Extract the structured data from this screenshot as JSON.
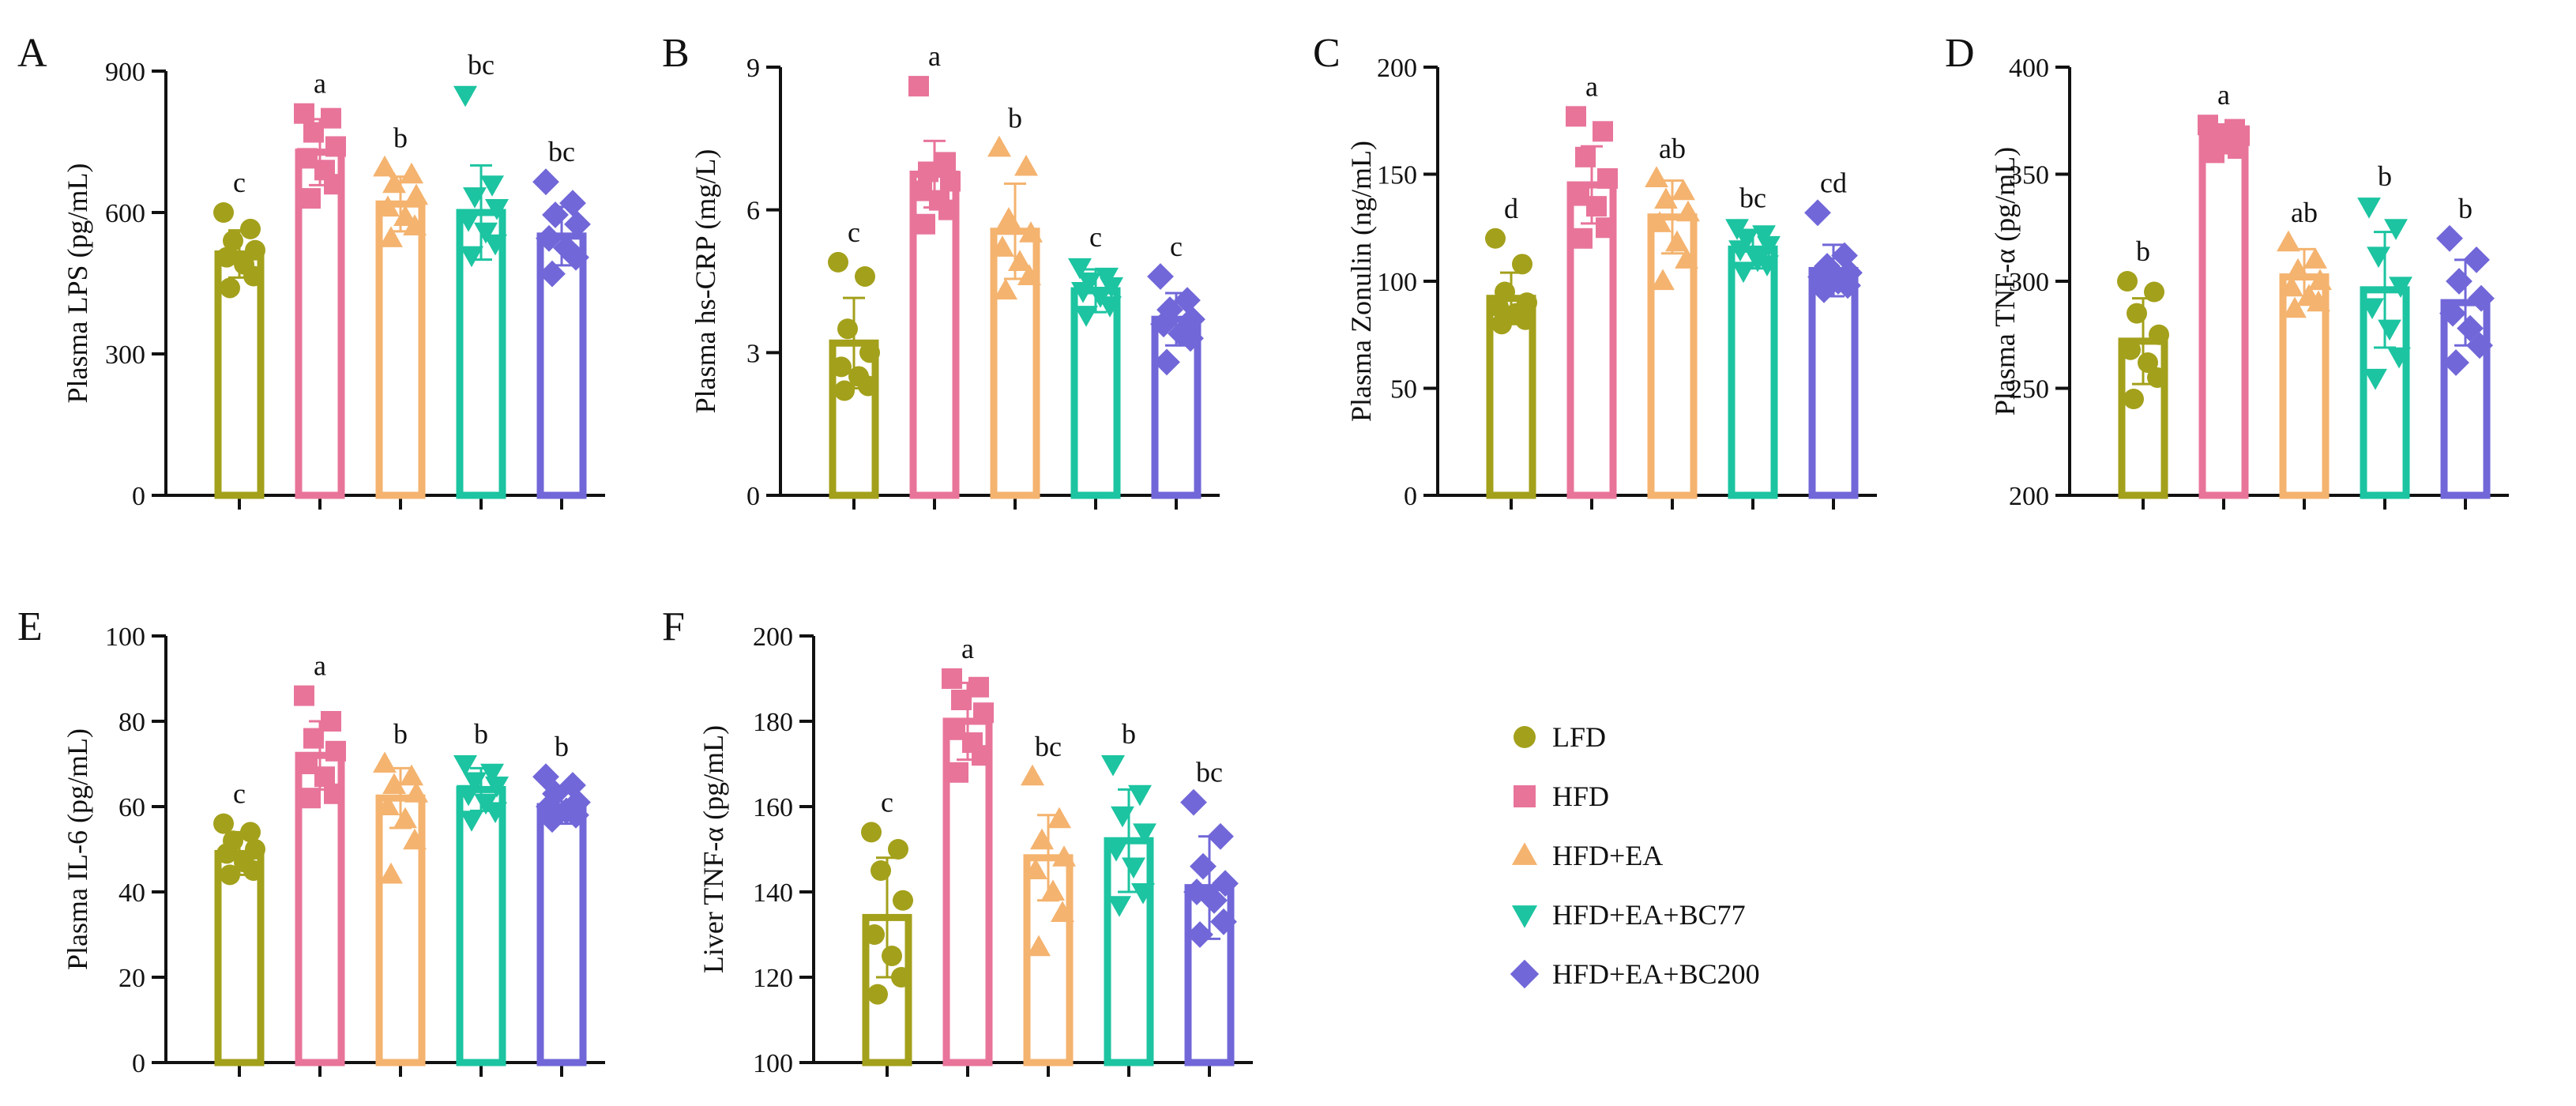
{
  "chart_data": [
    {
      "panel_label": "A",
      "type": "bar",
      "categories": [
        "LFD",
        "HFD",
        "HFD+EA",
        "HFD+EA+BC77",
        "HFD+EA+BC200"
      ],
      "values": [
        512,
        728,
        618,
        600,
        550
      ],
      "errors": [
        50,
        70,
        58,
        100,
        62
      ],
      "letters": [
        "c",
        "a",
        "b",
        "bc",
        "bc"
      ],
      "points": [
        [
          600,
          565,
          540,
          520,
          505,
          490,
          465,
          440
        ],
        [
          810,
          800,
          770,
          740,
          715,
          690,
          660,
          630
        ],
        [
          695,
          680,
          660,
          635,
          610,
          590,
          570,
          545
        ],
        [
          850,
          660,
          635,
          610,
          585,
          560,
          535,
          510
        ],
        [
          665,
          620,
          595,
          575,
          545,
          525,
          505,
          470
        ]
      ],
      "ylabel": "Plasma LPS (pg/mL)",
      "ylim": [
        0,
        900
      ],
      "yticks": [
        0,
        300,
        600,
        900
      ]
    },
    {
      "panel_label": "B",
      "type": "bar",
      "categories": [
        "LFD",
        "HFD",
        "HFD+EA",
        "HFD+EA+BC77",
        "HFD+EA+BC200"
      ],
      "values": [
        3.2,
        6.75,
        5.55,
        4.3,
        3.7
      ],
      "errors": [
        0.95,
        0.7,
        1.0,
        0.45,
        0.55
      ],
      "letters": [
        "c",
        "a",
        "b",
        "c",
        "c"
      ],
      "points": [
        [
          4.9,
          4.6,
          3.5,
          3.0,
          2.7,
          2.5,
          2.3,
          2.2
        ],
        [
          8.6,
          7.0,
          6.8,
          6.6,
          6.4,
          6.2,
          6.0,
          5.7
        ],
        [
          7.3,
          6.9,
          5.8,
          5.5,
          5.2,
          4.9,
          4.6,
          4.3
        ],
        [
          4.8,
          4.6,
          4.5,
          4.4,
          4.3,
          4.2,
          4.0,
          3.8
        ],
        [
          4.6,
          4.1,
          3.9,
          3.7,
          3.6,
          3.4,
          3.3,
          2.8
        ]
      ],
      "ylabel": "Plasma hs-CRP (mg/L)",
      "ylim": [
        0,
        9
      ],
      "yticks": [
        0,
        3,
        6,
        9
      ]
    },
    {
      "panel_label": "C",
      "type": "bar",
      "categories": [
        "LFD",
        "HFD",
        "HFD+EA",
        "HFD+EA+BC77",
        "HFD+EA+BC200"
      ],
      "values": [
        92,
        145,
        130,
        115,
        105
      ],
      "errors": [
        12,
        18,
        17,
        9,
        12
      ],
      "letters": [
        "d",
        "a",
        "ab",
        "bc",
        "cd"
      ],
      "points": [
        [
          120,
          108,
          95,
          90,
          88,
          85,
          82,
          80
        ],
        [
          177,
          170,
          158,
          148,
          140,
          135,
          125,
          120
        ],
        [
          148,
          142,
          138,
          132,
          127,
          118,
          110,
          100
        ],
        [
          125,
          122,
          120,
          117,
          115,
          110,
          108,
          105
        ],
        [
          132,
          112,
          107,
          104,
          102,
          100,
          98,
          96
        ]
      ],
      "ylabel": "Plasma Zonulin (ng/mL)",
      "ylim": [
        0,
        200
      ],
      "yticks": [
        0,
        50,
        100,
        150,
        200
      ]
    },
    {
      "panel_label": "D",
      "type": "bar",
      "categories": [
        "LFD",
        "HFD",
        "HFD+EA",
        "HFD+EA+BC77",
        "HFD+EA+BC200"
      ],
      "values": [
        272,
        368,
        302,
        296,
        290
      ],
      "errors": [
        20,
        5,
        13,
        27,
        20
      ],
      "letters": [
        "b",
        "a",
        "ab",
        "b",
        "b"
      ],
      "points": [
        [
          300,
          295,
          285,
          275,
          268,
          262,
          255,
          245
        ],
        [
          373,
          371,
          369,
          368,
          366,
          364,
          362,
          360
        ],
        [
          318,
          310,
          305,
          300,
          297,
          293,
          290,
          287
        ],
        [
          335,
          325,
          312,
          298,
          288,
          278,
          265,
          255
        ],
        [
          320,
          310,
          300,
          292,
          285,
          278,
          270,
          262
        ]
      ],
      "ylabel": "Plasma TNF-α (pg/mL)",
      "ylim": [
        200,
        400
      ],
      "yticks": [
        200,
        250,
        300,
        350,
        400
      ]
    },
    {
      "panel_label": "E",
      "type": "bar",
      "categories": [
        "LFD",
        "HFD",
        "HFD+EA",
        "HFD+EA+BC77",
        "HFD+EA+BC200"
      ],
      "values": [
        49,
        72,
        62,
        64,
        60
      ],
      "errors": [
        5,
        8,
        7,
        5,
        4
      ],
      "letters": [
        "c",
        "a",
        "b",
        "b",
        "b"
      ],
      "points": [
        [
          56,
          54,
          52,
          50,
          49,
          47,
          45,
          44
        ],
        [
          86,
          80,
          76,
          73,
          70,
          67,
          63,
          62
        ],
        [
          70,
          67,
          65,
          63,
          60,
          57,
          52,
          44
        ],
        [
          70,
          68,
          66,
          65,
          63,
          61,
          59,
          57
        ],
        [
          67,
          65,
          63,
          61,
          60,
          59,
          58,
          57
        ]
      ],
      "ylabel": "Plasma IL-6 (pg/mL)",
      "ylim": [
        0,
        100
      ],
      "yticks": [
        0,
        20,
        40,
        60,
        80,
        100
      ]
    },
    {
      "panel_label": "F",
      "type": "bar",
      "categories": [
        "LFD",
        "HFD",
        "HFD+EA",
        "HFD+EA+BC77",
        "HFD+EA+BC200"
      ],
      "values": [
        134,
        180,
        148,
        152,
        141
      ],
      "errors": [
        14,
        9,
        10,
        12,
        12
      ],
      "letters": [
        "c",
        "a",
        "bc",
        "b",
        "bc"
      ],
      "points": [
        [
          154,
          150,
          145,
          138,
          130,
          125,
          120,
          116
        ],
        [
          190,
          188,
          185,
          182,
          178,
          175,
          172,
          168
        ],
        [
          167,
          157,
          152,
          148,
          145,
          140,
          135,
          127
        ],
        [
          170,
          163,
          158,
          154,
          150,
          146,
          140,
          137
        ],
        [
          161,
          153,
          146,
          142,
          140,
          138,
          133,
          130
        ]
      ],
      "ylabel": "Liver TNF-α (pg/mL)",
      "ylim": [
        100,
        200
      ],
      "yticks": [
        100,
        120,
        140,
        160,
        180,
        200
      ]
    }
  ],
  "legend": [
    {
      "label": "LFD",
      "marker": "circle",
      "color": "#A3A01B"
    },
    {
      "label": "HFD",
      "marker": "square",
      "color": "#E8749A"
    },
    {
      "label": "HFD+EA",
      "marker": "triangle-up",
      "color": "#F4B36F"
    },
    {
      "label": "HFD+EA+BC77",
      "marker": "triangle-down",
      "color": "#1CC4A1"
    },
    {
      "label": "HFD+EA+BC200",
      "marker": "diamond",
      "color": "#7167D8"
    }
  ]
}
